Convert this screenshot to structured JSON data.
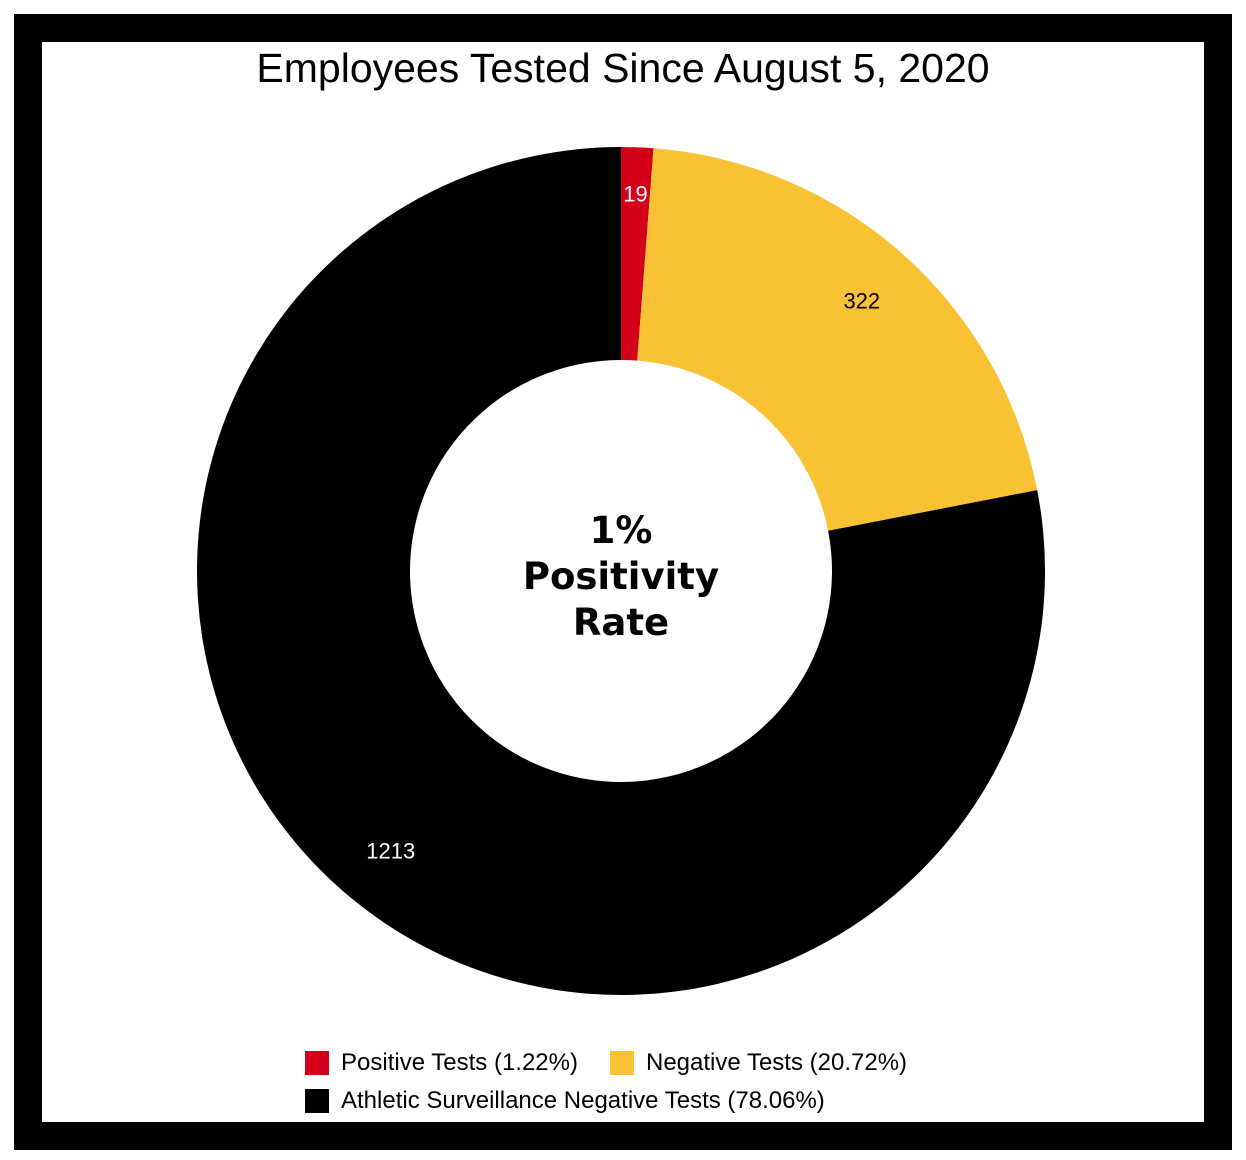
{
  "chart_data": {
    "type": "pie",
    "title": "Employees Tested Since August 5, 2020",
    "center_text": [
      "1%",
      "Positivity",
      "Rate"
    ],
    "slices": [
      {
        "name": "Positive Tests",
        "value": 19,
        "legend_label": "Positive Tests (1.22%)",
        "color": "#d4001a",
        "label_color": "#ffffff"
      },
      {
        "name": "Negative Tests",
        "value": 322,
        "legend_label": "Negative Tests (20.72%)",
        "color": "#f8c234",
        "label_color": "#000000"
      },
      {
        "name": "Athletic Surveillance Negative Tests",
        "value": 1213,
        "legend_label": "Athletic Surveillance Negative Tests (78.06%)",
        "color": "#000000",
        "label_color": "#ffffff"
      }
    ],
    "legend_placement": "bottom",
    "donut": true
  }
}
